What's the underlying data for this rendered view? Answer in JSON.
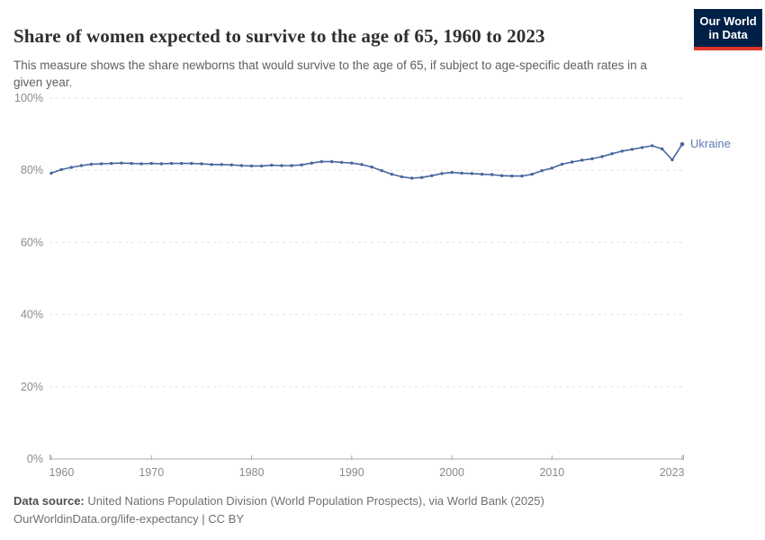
{
  "header": {
    "title": "Share of women expected to survive to the age of 65, 1960 to 2023",
    "subtitle": "This measure shows the share newborns that would survive to the age of 65, if subject to age-specific death rates in a given year.",
    "logo": {
      "line1": "Our World",
      "line2": "in Data",
      "bg_color": "#002147",
      "accent_color": "#dd352a"
    }
  },
  "chart_data": {
    "type": "line",
    "title": "Share of women expected to survive to the age of 65, 1960 to 2023",
    "x": [
      1960,
      1961,
      1962,
      1963,
      1964,
      1965,
      1966,
      1967,
      1968,
      1969,
      1970,
      1971,
      1972,
      1973,
      1974,
      1975,
      1976,
      1977,
      1978,
      1979,
      1980,
      1981,
      1982,
      1983,
      1984,
      1985,
      1986,
      1987,
      1988,
      1989,
      1990,
      1991,
      1992,
      1993,
      1994,
      1995,
      1996,
      1997,
      1998,
      1999,
      2000,
      2001,
      2002,
      2003,
      2004,
      2005,
      2006,
      2007,
      2008,
      2009,
      2010,
      2011,
      2012,
      2013,
      2014,
      2015,
      2016,
      2017,
      2018,
      2019,
      2020,
      2021,
      2022,
      2023
    ],
    "series": [
      {
        "name": "Ukraine",
        "color": "#47679f",
        "values": [
          79.2,
          80.2,
          80.8,
          81.3,
          81.7,
          81.8,
          81.9,
          82.0,
          81.9,
          81.8,
          81.9,
          81.8,
          81.9,
          81.9,
          81.9,
          81.8,
          81.6,
          81.6,
          81.5,
          81.3,
          81.2,
          81.2,
          81.4,
          81.3,
          81.3,
          81.5,
          82.0,
          82.4,
          82.4,
          82.2,
          82.0,
          81.6,
          80.9,
          79.9,
          78.9,
          78.2,
          77.8,
          78.0,
          78.5,
          79.1,
          79.4,
          79.2,
          79.1,
          78.9,
          78.8,
          78.5,
          78.4,
          78.4,
          78.9,
          79.9,
          80.6,
          81.7,
          82.3,
          82.8,
          83.2,
          83.8,
          84.6,
          85.3,
          85.8,
          86.3,
          86.8,
          85.9,
          82.9,
          87.2
        ]
      }
    ],
    "xlabel": "",
    "ylabel": "",
    "ylim": [
      0,
      100
    ],
    "yticks": [
      0,
      20,
      40,
      60,
      80,
      100
    ],
    "ytick_suffix": "%",
    "xticks": [
      1960,
      1970,
      1980,
      1990,
      2000,
      2010,
      2023
    ],
    "grid": "horizontal-dashed",
    "legend_position": "line-end-label",
    "colors": {
      "gridline": "#e2e2e2",
      "axis": "#a8a8a8",
      "tick_label": "#8b8b8b"
    }
  },
  "footer": {
    "source_label": "Data source:",
    "source_text": " United Nations Population Division (World Population Prospects), via World Bank (2025)",
    "link_line": "OurWorldinData.org/life-expectancy | CC BY"
  }
}
